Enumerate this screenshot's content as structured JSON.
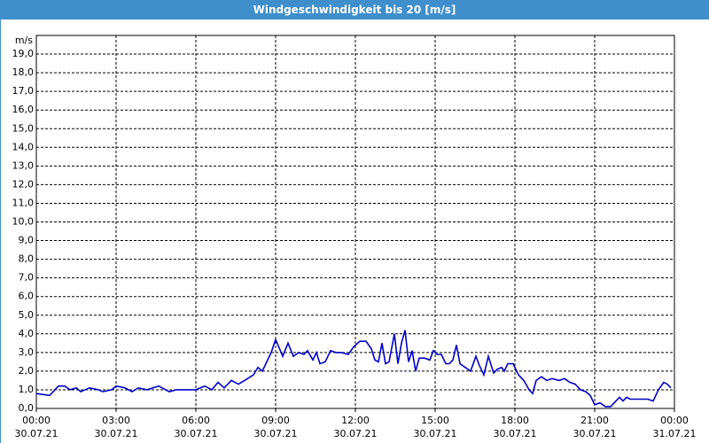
{
  "chart_data": {
    "type": "line",
    "title": "Windgeschwindigkeit bis 20 [m/s]",
    "y_label": "m/s",
    "color": "#0000c8",
    "grid": true,
    "ylim": [
      0,
      20
    ],
    "yticks": [
      {
        "value": 0,
        "label": "0,0"
      },
      {
        "value": 1,
        "label": "1,0"
      },
      {
        "value": 2,
        "label": "2,0"
      },
      {
        "value": 3,
        "label": "3,0"
      },
      {
        "value": 4,
        "label": "4,0"
      },
      {
        "value": 5,
        "label": "5,0"
      },
      {
        "value": 6,
        "label": "6,0"
      },
      {
        "value": 7,
        "label": "7,0"
      },
      {
        "value": 8,
        "label": "8,0"
      },
      {
        "value": 9,
        "label": "9,0"
      },
      {
        "value": 10,
        "label": "10,0"
      },
      {
        "value": 11,
        "label": "11,0"
      },
      {
        "value": 12,
        "label": "12,0"
      },
      {
        "value": 13,
        "label": "13,0"
      },
      {
        "value": 14,
        "label": "14,0"
      },
      {
        "value": 15,
        "label": "15,0"
      },
      {
        "value": 16,
        "label": "16,0"
      },
      {
        "value": 17,
        "label": "17,0"
      },
      {
        "value": 18,
        "label": "18,0"
      },
      {
        "value": 19,
        "label": "19,0"
      }
    ],
    "xlim": [
      "2021-07-30T00:00",
      "2021-07-31T00:00"
    ],
    "xticks": [
      {
        "value": "2021-07-30T00:00",
        "label": [
          "00:00",
          "30.07.21"
        ]
      },
      {
        "value": "2021-07-30T03:00",
        "label": [
          "03:00",
          "30.07.21"
        ]
      },
      {
        "value": "2021-07-30T06:00",
        "label": [
          "06:00",
          "30.07.21"
        ]
      },
      {
        "value": "2021-07-30T09:00",
        "label": [
          "09:00",
          "30.07.21"
        ]
      },
      {
        "value": "2021-07-30T12:00",
        "label": [
          "12:00",
          "30.07.21"
        ]
      },
      {
        "value": "2021-07-30T15:00",
        "label": [
          "15:00",
          "30.07.21"
        ]
      },
      {
        "value": "2021-07-30T18:00",
        "label": [
          "18:00",
          "30.07.21"
        ]
      },
      {
        "value": "2021-07-30T21:00",
        "label": [
          "21:00",
          "30.07.21"
        ]
      },
      {
        "value": "2021-07-31T00:00",
        "label": [
          "00:00",
          "31.07.21"
        ]
      }
    ],
    "x": [
      "2021-07-30T00:00",
      "2021-07-30T00:30",
      "2021-07-30T00:50",
      "2021-07-30T01:04",
      "2021-07-30T01:16",
      "2021-07-30T01:30",
      "2021-07-30T01:40",
      "2021-07-30T02:00",
      "2021-07-30T02:20",
      "2021-07-30T02:30",
      "2021-07-30T02:50",
      "2021-07-30T03:00",
      "2021-07-30T03:20",
      "2021-07-30T03:36",
      "2021-07-30T03:50",
      "2021-07-30T04:10",
      "2021-07-30T04:36",
      "2021-07-30T05:00",
      "2021-07-30T05:16",
      "2021-07-30T05:40",
      "2021-07-30T06:00",
      "2021-07-30T06:20",
      "2021-07-30T06:36",
      "2021-07-30T06:50",
      "2021-07-30T07:04",
      "2021-07-30T07:20",
      "2021-07-30T07:36",
      "2021-07-30T07:50",
      "2021-07-30T08:10",
      "2021-07-30T08:20",
      "2021-07-30T08:30",
      "2021-07-30T08:40",
      "2021-07-30T08:50",
      "2021-07-30T09:00",
      "2021-07-30T09:16",
      "2021-07-30T09:28",
      "2021-07-30T09:40",
      "2021-07-30T09:52",
      "2021-07-30T10:04",
      "2021-07-30T10:12",
      "2021-07-30T10:24",
      "2021-07-30T10:32",
      "2021-07-30T10:40",
      "2021-07-30T10:52",
      "2021-07-30T11:04",
      "2021-07-30T11:16",
      "2021-07-30T11:28",
      "2021-07-30T11:44",
      "2021-07-30T11:56",
      "2021-07-30T12:10",
      "2021-07-30T12:24",
      "2021-07-30T12:36",
      "2021-07-30T12:44",
      "2021-07-30T12:52",
      "2021-07-30T13:00",
      "2021-07-30T13:08",
      "2021-07-30T13:16",
      "2021-07-30T13:28",
      "2021-07-30T13:36",
      "2021-07-30T13:44",
      "2021-07-30T13:52",
      "2021-07-30T14:00",
      "2021-07-30T14:08",
      "2021-07-30T14:16",
      "2021-07-30T14:24",
      "2021-07-30T14:36",
      "2021-07-30T14:48",
      "2021-07-30T14:56",
      "2021-07-30T15:04",
      "2021-07-30T15:14",
      "2021-07-30T15:24",
      "2021-07-30T15:32",
      "2021-07-30T15:40",
      "2021-07-30T15:48",
      "2021-07-30T15:56",
      "2021-07-30T16:08",
      "2021-07-30T16:20",
      "2021-07-30T16:32",
      "2021-07-30T16:40",
      "2021-07-30T16:50",
      "2021-07-30T17:00",
      "2021-07-30T17:12",
      "2021-07-30T17:20",
      "2021-07-30T17:30",
      "2021-07-30T17:36",
      "2021-07-30T17:44",
      "2021-07-30T17:56",
      "2021-07-30T18:08",
      "2021-07-30T18:20",
      "2021-07-30T18:32",
      "2021-07-30T18:40",
      "2021-07-30T18:48",
      "2021-07-30T19:00",
      "2021-07-30T19:12",
      "2021-07-30T19:24",
      "2021-07-30T19:40",
      "2021-07-30T19:52",
      "2021-07-30T20:04",
      "2021-07-30T20:16",
      "2021-07-30T20:28",
      "2021-07-30T20:40",
      "2021-07-30T20:50",
      "2021-07-30T21:00",
      "2021-07-30T21:12",
      "2021-07-30T21:24",
      "2021-07-30T21:36",
      "2021-07-30T21:48",
      "2021-07-30T21:56",
      "2021-07-30T22:04",
      "2021-07-30T22:12",
      "2021-07-30T22:20",
      "2021-07-30T22:40",
      "2021-07-30T23:00",
      "2021-07-30T23:12",
      "2021-07-30T23:24",
      "2021-07-30T23:36",
      "2021-07-30T23:44",
      "2021-07-30T23:52"
    ],
    "values": [
      0.8,
      0.7,
      1.2,
      1.2,
      1.0,
      1.1,
      0.9,
      1.1,
      1.0,
      0.9,
      1.0,
      1.2,
      1.1,
      0.9,
      1.1,
      1.0,
      1.2,
      0.9,
      1.0,
      1.0,
      1.0,
      1.2,
      1.0,
      1.4,
      1.1,
      1.5,
      1.3,
      1.5,
      1.8,
      2.2,
      2.0,
      2.5,
      3.0,
      3.7,
      2.8,
      3.5,
      2.8,
      3.0,
      2.9,
      3.1,
      2.6,
      3.0,
      2.4,
      2.5,
      3.1,
      3.0,
      3.0,
      2.9,
      3.3,
      3.6,
      3.6,
      3.2,
      2.6,
      2.5,
      3.5,
      2.4,
      2.5,
      4.0,
      2.4,
      3.5,
      4.2,
      2.5,
      3.1,
      2.0,
      2.7,
      2.7,
      2.6,
      3.1,
      2.9,
      2.9,
      2.4,
      2.4,
      2.6,
      3.4,
      2.4,
      2.2,
      2.0,
      2.8,
      2.3,
      1.8,
      2.8,
      1.9,
      2.1,
      2.2,
      2.0,
      2.4,
      2.4,
      1.8,
      1.5,
      1.0,
      0.8,
      1.5,
      1.7,
      1.5,
      1.6,
      1.5,
      1.6,
      1.4,
      1.3,
      1.0,
      0.9,
      0.7,
      0.2,
      0.3,
      0.1,
      0.1,
      0.4,
      0.6,
      0.4,
      0.6,
      0.5,
      0.5,
      0.5,
      0.4,
      1.0,
      1.4,
      1.3,
      1.1
    ]
  }
}
